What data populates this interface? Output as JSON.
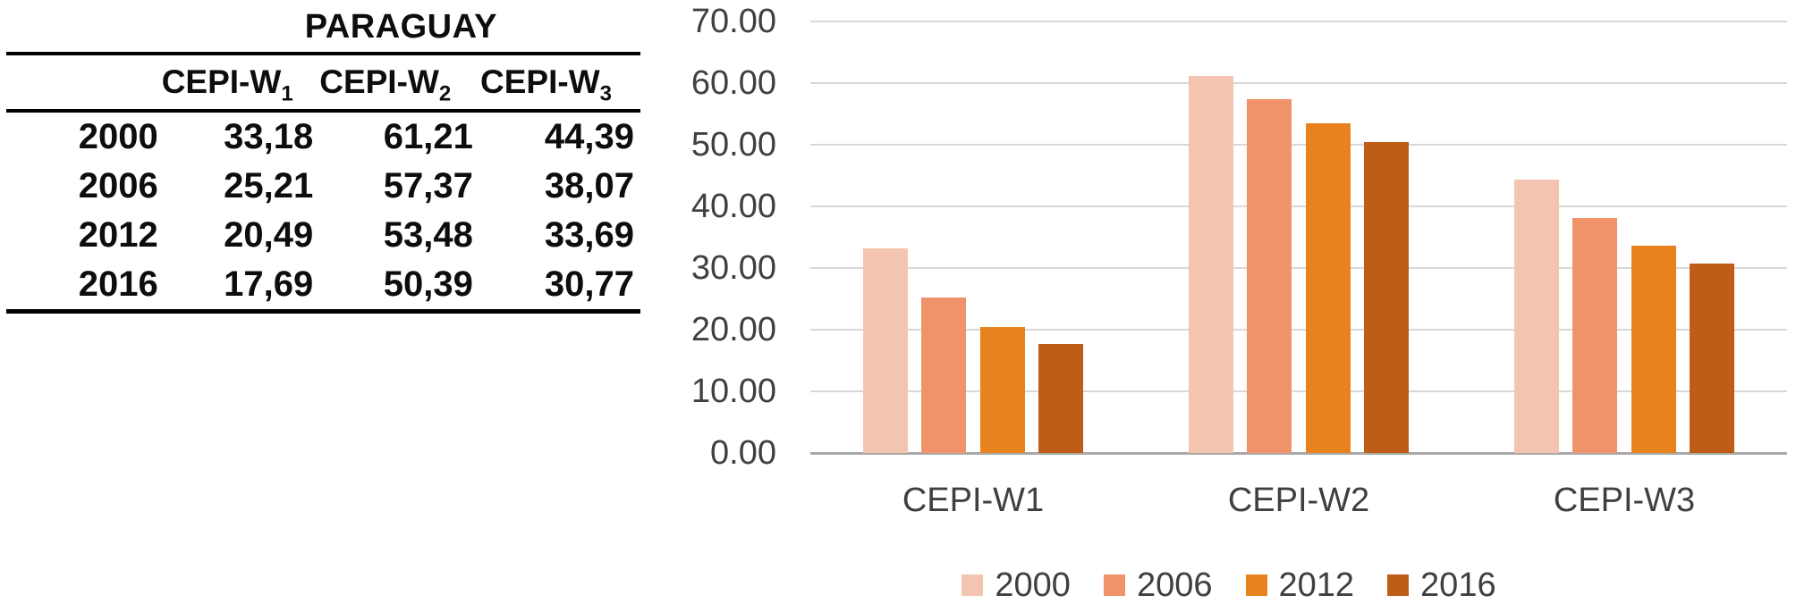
{
  "table": {
    "title": "PARAGUAY",
    "columns": [
      {
        "base": "CEPI-W",
        "sub": "1"
      },
      {
        "base": "CEPI-W",
        "sub": "2"
      },
      {
        "base": "CEPI-W",
        "sub": "3"
      }
    ],
    "rows": [
      {
        "year": "2000",
        "w1": "33,18",
        "w2": "61,21",
        "w3": "44,39"
      },
      {
        "year": "2006",
        "w1": "25,21",
        "w2": "57,37",
        "w3": "38,07"
      },
      {
        "year": "2012",
        "w1": "20,49",
        "w2": "53,48",
        "w3": "33,69"
      },
      {
        "year": "2016",
        "w1": "17,69",
        "w2": "50,39",
        "w3": "30,77"
      }
    ]
  },
  "chart_data": {
    "type": "bar",
    "categories": [
      "CEPI-W1",
      "CEPI-W2",
      "CEPI-W3"
    ],
    "series": [
      {
        "name": "2000",
        "color": "#F3C5B0",
        "values": [
          33.18,
          61.21,
          44.39
        ]
      },
      {
        "name": "2006",
        "color": "#F0936B",
        "values": [
          25.21,
          57.37,
          38.07
        ]
      },
      {
        "name": "2012",
        "color": "#E8821E",
        "values": [
          20.49,
          53.48,
          33.69
        ]
      },
      {
        "name": "2016",
        "color": "#BF5C17",
        "values": [
          17.69,
          50.39,
          30.77
        ]
      }
    ],
    "ylim": [
      0,
      70
    ],
    "ytick_step": 10,
    "ytick_labels": [
      "0.00",
      "10.00",
      "20.00",
      "30.00",
      "40.00",
      "50.00",
      "60.00",
      "70.00"
    ],
    "grid": true,
    "legend_position": "bottom",
    "title": "",
    "xlabel": "",
    "ylabel": "",
    "style": {
      "gridline_color": "#D8D8D8",
      "axis_line_color": "#A9A9A9",
      "tick_text_color": "#404040",
      "label_text_color": "#3F3F3F"
    }
  }
}
